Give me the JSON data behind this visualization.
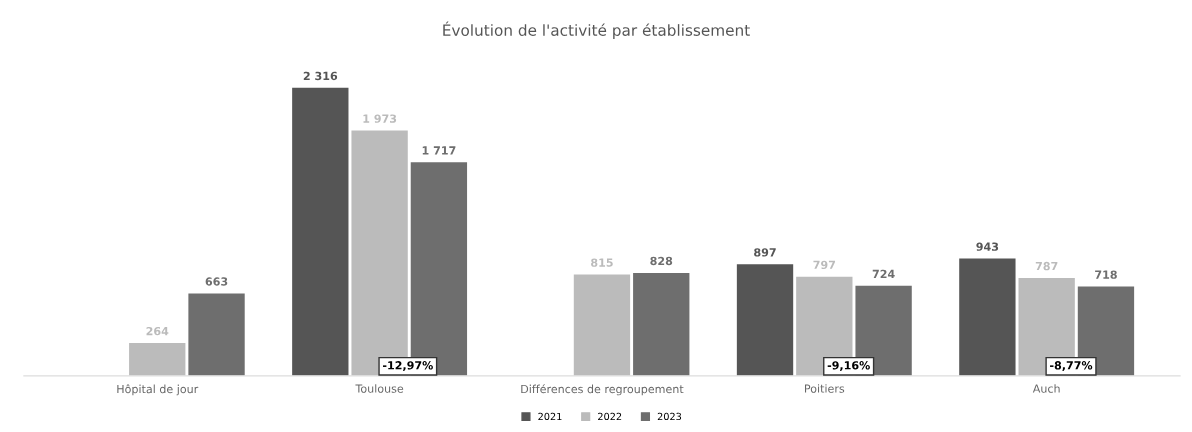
{
  "chart_data": {
    "type": "bar",
    "title": "Évolution de l'activité par établissement",
    "categories": [
      "Hôpital de jour",
      "Toulouse",
      "Différences de regroupement",
      "Poitiers",
      "Auch"
    ],
    "series": [
      {
        "name": "2021",
        "color": "#555555",
        "values": [
          null,
          2316,
          null,
          897,
          943
        ],
        "value_labels": [
          null,
          "2 316",
          null,
          "897",
          "943"
        ]
      },
      {
        "name": "2022",
        "color": "#bbbbbb",
        "values": [
          264,
          1973,
          815,
          797,
          787
        ],
        "value_labels": [
          "264",
          "1 973",
          "815",
          "797",
          "787"
        ]
      },
      {
        "name": "2023",
        "color": "#6e6e6e",
        "values": [
          663,
          1717,
          828,
          724,
          718
        ],
        "value_labels": [
          "663",
          "1 717",
          "828",
          "724",
          "718"
        ]
      }
    ],
    "annotations": [
      {
        "text": "-12,97%",
        "x": "Toulouse",
        "y": 0
      },
      {
        "text": "-9,16%",
        "x": "Poitiers",
        "y": 0
      },
      {
        "text": "-8,77%",
        "x": "Auch",
        "y": 0
      }
    ],
    "legend": "bottom",
    "grid": false
  }
}
